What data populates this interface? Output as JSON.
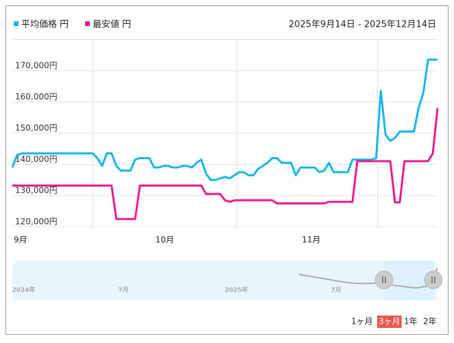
{
  "chart_data": [
    {
      "type": "line",
      "subtitle": "2025年9月14日 - 2025年12月14日",
      "categories": [
        "9月",
        null,
        null,
        null,
        null,
        null,
        null,
        null,
        null,
        null,
        null,
        null,
        null,
        null,
        null,
        null,
        null,
        null,
        null,
        null,
        null,
        null,
        null,
        null,
        null,
        null,
        null,
        null,
        null,
        null,
        "10月",
        null,
        null,
        null,
        null,
        null,
        null,
        null,
        null,
        null,
        null,
        null,
        null,
        null,
        null,
        null,
        null,
        null,
        null,
        null,
        null,
        null,
        null,
        null,
        null,
        null,
        null,
        null,
        null,
        null,
        null,
        "11月",
        null,
        null,
        null,
        null,
        null,
        null,
        null,
        null,
        null,
        null,
        null,
        null,
        null,
        null,
        null,
        null,
        null,
        null,
        null,
        null,
        null,
        null,
        null,
        null,
        null,
        null,
        null,
        null,
        null
      ],
      "series": [
        {
          "name": "平均価格 円",
          "color": "#14b6ec",
          "values": [
            139000,
            143000,
            143500,
            143500,
            143500,
            143500,
            143500,
            143500,
            143500,
            143500,
            143500,
            143500,
            143500,
            143500,
            143500,
            143500,
            143500,
            143500,
            142000,
            139500,
            143500,
            143500,
            139500,
            138000,
            138000,
            138000,
            141500,
            142000,
            142000,
            142000,
            139000,
            139000,
            139500,
            139500,
            139000,
            139000,
            139500,
            139500,
            139000,
            140500,
            141500,
            137000,
            135000,
            135000,
            135500,
            136000,
            135500,
            136500,
            137500,
            137500,
            136500,
            136500,
            138500,
            139500,
            140500,
            142000,
            142000,
            140500,
            140500,
            140500,
            136500,
            139000,
            139000,
            139000,
            139000,
            137500,
            138000,
            140500,
            137500,
            137500,
            137500,
            137500,
            141500,
            141500,
            141500,
            141500,
            141500,
            142000,
            163500,
            149500,
            147500,
            148500,
            150500,
            150500,
            150500,
            150500,
            158000,
            163000,
            173500,
            173500,
            173500
          ]
        },
        {
          "name": "最安値 円",
          "color": "#ec1a8c",
          "values": [
            133200,
            133200,
            133200,
            133200,
            133200,
            133200,
            133200,
            133200,
            133200,
            133200,
            133200,
            133200,
            133200,
            133200,
            133200,
            133200,
            133200,
            133200,
            133200,
            133200,
            133200,
            133200,
            122500,
            122500,
            122500,
            122500,
            122500,
            133200,
            133200,
            133200,
            133200,
            133200,
            133200,
            133200,
            133200,
            133200,
            133200,
            133200,
            133200,
            133200,
            133200,
            130500,
            130500,
            130500,
            130500,
            128500,
            128000,
            128500,
            128500,
            128500,
            128500,
            128500,
            128500,
            128500,
            128500,
            128500,
            127500,
            127500,
            127500,
            127500,
            127500,
            127500,
            127500,
            127500,
            127500,
            127500,
            127500,
            128000,
            128000,
            128000,
            128000,
            128000,
            128000,
            141000,
            141000,
            141000,
            141000,
            141000,
            141000,
            141000,
            141000,
            127800,
            127800,
            141000,
            141000,
            141000,
            141000,
            141000,
            141000,
            143500,
            158000
          ]
        }
      ],
      "ylim": [
        119700,
        180100
      ],
      "yticks": [
        {
          "value": 120000,
          "label": "120,000円"
        },
        {
          "value": 130000,
          "label": "130,000円"
        },
        {
          "value": 140000,
          "label": "140,000円"
        },
        {
          "value": 150000,
          "label": "150,000円"
        },
        {
          "value": 160000,
          "label": "160,000円"
        },
        {
          "value": 170000,
          "label": "170,000円"
        }
      ],
      "grid": true
    },
    {
      "type": "line",
      "categories": [
        null,
        "2024年",
        null,
        null,
        null,
        null,
        null,
        null,
        null,
        null,
        null,
        "7月",
        null,
        null,
        null,
        null,
        null,
        null,
        null,
        null,
        null,
        "2025年",
        null,
        null,
        null,
        null,
        null,
        null,
        null,
        null,
        null,
        "7月",
        null,
        null,
        null,
        null,
        null,
        null,
        null,
        null,
        null
      ],
      "series": [
        {
          "color": "#aaaaaa",
          "values": [
            null,
            null,
            null,
            null,
            null,
            null,
            null,
            null,
            null,
            null,
            null,
            null,
            null,
            null,
            null,
            null,
            null,
            null,
            null,
            null,
            null,
            null,
            null,
            null,
            null,
            null,
            null,
            160000,
            157000,
            154000,
            151000,
            148000,
            146000,
            145000,
            146000,
            145000,
            142000,
            140000,
            138000,
            141000,
            170000
          ]
        }
      ],
      "ylim": [
        120000,
        180000
      ]
    }
  ],
  "range_buttons": [
    "1ヶ月",
    "3ヶ月",
    "1年",
    "2年"
  ],
  "selected_range": 1
}
